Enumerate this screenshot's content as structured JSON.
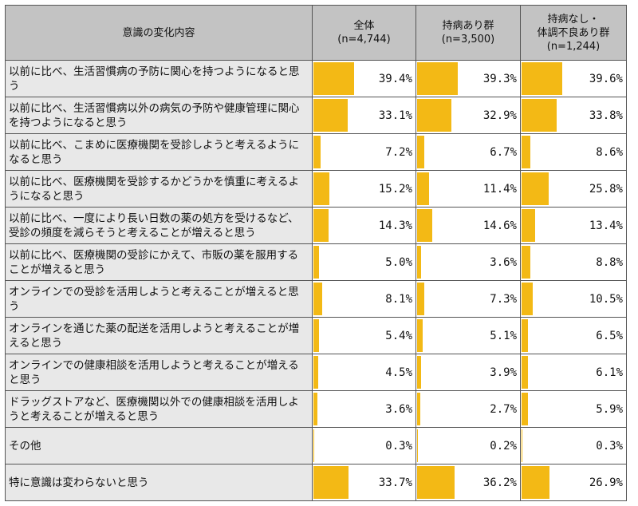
{
  "chart_data": {
    "type": "table",
    "colors": {
      "bar": "#f3b915",
      "header": "#c3c3c3",
      "label_bg": "#e8e8e8"
    },
    "headers": [
      {
        "lines": [
          "意識の変化内容"
        ]
      },
      {
        "lines": [
          "全体",
          "(n=4,744)"
        ]
      },
      {
        "lines": [
          "持病あり群",
          "(n=3,500)"
        ]
      },
      {
        "lines": [
          "持病なし・",
          "体調不良あり群",
          "(n=1,244)"
        ]
      }
    ],
    "xlim": [
      0,
      100
    ],
    "rows": [
      {
        "label": "以前に比べ、生活習慣病の予防に関心を持つようになると思う",
        "values": [
          39.4,
          39.3,
          39.6
        ],
        "labels": [
          "39.4%",
          "39.3%",
          "39.6%"
        ]
      },
      {
        "label": "以前に比べ、生活習慣病以外の病気の予防や健康管理に関心を持つようになると思う",
        "values": [
          33.1,
          32.9,
          33.8
        ],
        "labels": [
          "33.1%",
          "32.9%",
          "33.8%"
        ]
      },
      {
        "label": "以前に比べ、こまめに医療機関を受診しようと考えるようになると思う",
        "values": [
          7.2,
          6.7,
          8.6
        ],
        "labels": [
          "7.2%",
          "6.7%",
          "8.6%"
        ]
      },
      {
        "label": "以前に比べ、医療機関を受診するかどうかを慎重に考えるようになると思う",
        "values": [
          15.2,
          11.4,
          25.8
        ],
        "labels": [
          "15.2%",
          "11.4%",
          "25.8%"
        ]
      },
      {
        "label": "以前に比べ、一度により長い日数の薬の処方を受けるなど、受診の頻度を減らそうと考えることが増えると思う",
        "values": [
          14.3,
          14.6,
          13.4
        ],
        "labels": [
          "14.3%",
          "14.6%",
          "13.4%"
        ]
      },
      {
        "label": "以前に比べ、医療機関の受診にかえて、市販の薬を服用することが増えると思う",
        "values": [
          5.0,
          3.6,
          8.8
        ],
        "labels": [
          "5.0%",
          "3.6%",
          "8.8%"
        ]
      },
      {
        "label": "オンラインでの受診を活用しようと考えることが増えると思う",
        "values": [
          8.1,
          7.3,
          10.5
        ],
        "labels": [
          "8.1%",
          "7.3%",
          "10.5%"
        ]
      },
      {
        "label": "オンラインを通じた薬の配送を活用しようと考えることが増えると思う",
        "values": [
          5.4,
          5.1,
          6.5
        ],
        "labels": [
          "5.4%",
          "5.1%",
          "6.5%"
        ]
      },
      {
        "label": "オンラインでの健康相談を活用しようと考えることが増えると思う",
        "values": [
          4.5,
          3.9,
          6.1
        ],
        "labels": [
          "4.5%",
          "3.9%",
          "6.1%"
        ]
      },
      {
        "label": "ドラッグストアなど、医療機関以外での健康相談を活用しようと考えることが増えると思う",
        "values": [
          3.6,
          2.7,
          5.9
        ],
        "labels": [
          "3.6%",
          "2.7%",
          "5.9%"
        ]
      },
      {
        "label": "その他",
        "values": [
          0.3,
          0.2,
          0.3
        ],
        "labels": [
          "0.3%",
          "0.2%",
          "0.3%"
        ]
      },
      {
        "label": "特に意識は変わらないと思う",
        "values": [
          33.7,
          36.2,
          26.9
        ],
        "labels": [
          "33.7%",
          "36.2%",
          "26.9%"
        ]
      }
    ]
  }
}
